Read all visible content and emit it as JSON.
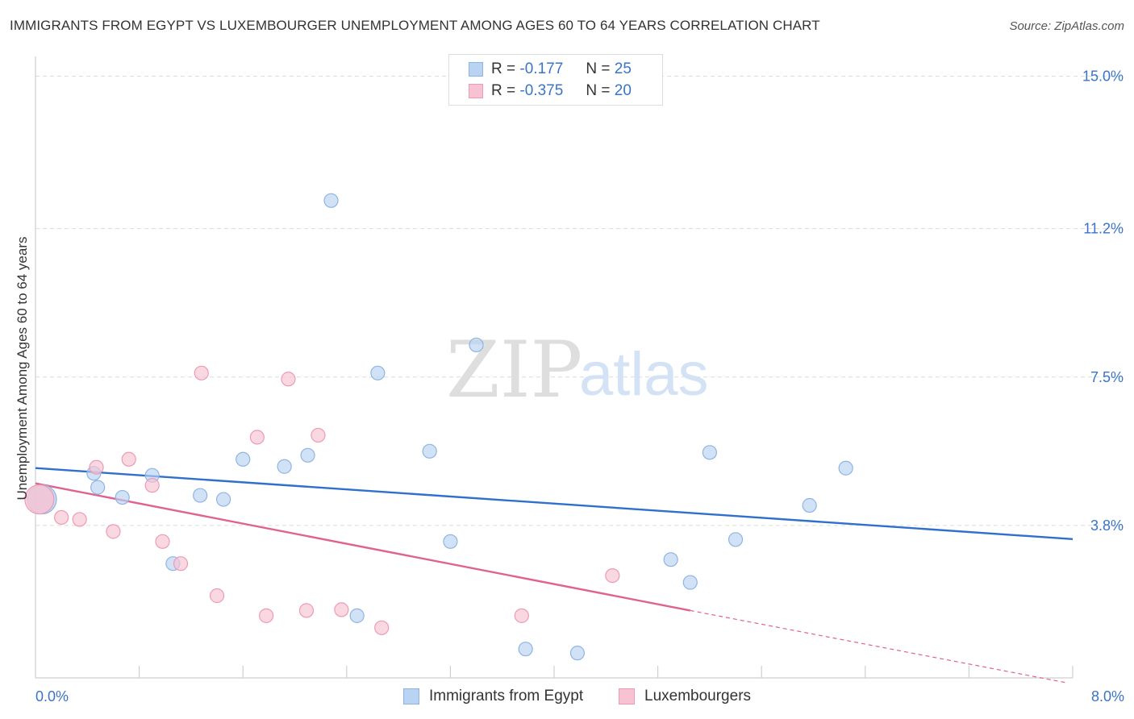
{
  "title": "IMMIGRANTS FROM EGYPT VS LUXEMBOURGER UNEMPLOYMENT AMONG AGES 60 TO 64 YEARS CORRELATION CHART",
  "source": "Source: ZipAtlas.com",
  "watermark": {
    "zip": "ZIP",
    "atlas": "atlas"
  },
  "legend": {
    "r_label": "R =",
    "n_label": "N =",
    "rows": [
      {
        "r": "-0.177",
        "n": "25"
      },
      {
        "r": "-0.375",
        "n": "20"
      }
    ]
  },
  "colors": {
    "blue_fill": "#b9d3f2",
    "blue_stroke": "#8fb4e3",
    "blue_line": "#2f6fce",
    "pink_fill": "#f7c3d2",
    "pink_stroke": "#ee9ab3",
    "pink_line": "#e0628f",
    "axis_text": "#3a74c8"
  },
  "chart_data": {
    "type": "scatter",
    "title": "IMMIGRANTS FROM EGYPT VS LUXEMBOURGER UNEMPLOYMENT AMONG AGES 60 TO 64 YEARS CORRELATION CHART",
    "xlabel": "",
    "ylabel": "Unemployment Among Ages 60 to 64 years",
    "xlim": [
      0,
      8
    ],
    "ylim": [
      0,
      15.3
    ],
    "x_tick_labels": [
      "0.0%",
      "8.0%"
    ],
    "y_ticks": [
      3.8,
      7.5,
      11.2,
      15.0
    ],
    "y_tick_labels": [
      "3.8%",
      "7.5%",
      "11.2%",
      "15.0%"
    ],
    "grid": true,
    "legend_position": "top-center",
    "series": [
      {
        "name": "Immigrants from Egypt",
        "r": -0.177,
        "n": 25,
        "trend": {
          "x0": 0.0,
          "y0": 5.23,
          "x1": 8.0,
          "y1": 3.46
        },
        "points": [
          {
            "x": 0.05,
            "y": 4.45,
            "big": true
          },
          {
            "x": 0.45,
            "y": 5.1
          },
          {
            "x": 0.48,
            "y": 4.75
          },
          {
            "x": 0.67,
            "y": 4.5
          },
          {
            "x": 0.9,
            "y": 5.05
          },
          {
            "x": 1.06,
            "y": 2.85
          },
          {
            "x": 1.27,
            "y": 4.55
          },
          {
            "x": 1.45,
            "y": 4.45
          },
          {
            "x": 1.6,
            "y": 5.45
          },
          {
            "x": 1.92,
            "y": 5.27
          },
          {
            "x": 2.1,
            "y": 5.55
          },
          {
            "x": 2.28,
            "y": 11.9
          },
          {
            "x": 2.48,
            "y": 1.55
          },
          {
            "x": 2.64,
            "y": 7.6
          },
          {
            "x": 3.04,
            "y": 5.65
          },
          {
            "x": 3.2,
            "y": 3.4
          },
          {
            "x": 3.4,
            "y": 8.3
          },
          {
            "x": 3.78,
            "y": 0.72
          },
          {
            "x": 4.18,
            "y": 0.62
          },
          {
            "x": 4.9,
            "y": 2.95
          },
          {
            "x": 5.05,
            "y": 2.38
          },
          {
            "x": 5.2,
            "y": 5.62
          },
          {
            "x": 5.4,
            "y": 3.45
          },
          {
            "x": 5.97,
            "y": 4.3
          },
          {
            "x": 6.25,
            "y": 5.23
          }
        ]
      },
      {
        "name": "Luxembourgers",
        "r": -0.375,
        "n": 20,
        "trend": {
          "x0": 0.0,
          "y0": 4.85,
          "x1": 5.05,
          "y1": 1.68
        },
        "trend_dashed": {
          "x0": 5.05,
          "y0": 1.68,
          "x1": 7.95,
          "y1": -0.12
        },
        "points": [
          {
            "x": 0.03,
            "y": 4.45,
            "big": true
          },
          {
            "x": 0.2,
            "y": 4.0
          },
          {
            "x": 0.34,
            "y": 3.95
          },
          {
            "x": 0.47,
            "y": 5.25
          },
          {
            "x": 0.6,
            "y": 3.65
          },
          {
            "x": 0.72,
            "y": 5.45
          },
          {
            "x": 0.9,
            "y": 4.8
          },
          {
            "x": 0.98,
            "y": 3.4
          },
          {
            "x": 1.12,
            "y": 2.85
          },
          {
            "x": 1.28,
            "y": 7.6
          },
          {
            "x": 1.4,
            "y": 2.05
          },
          {
            "x": 1.71,
            "y": 6.0
          },
          {
            "x": 1.78,
            "y": 1.55
          },
          {
            "x": 1.95,
            "y": 7.45
          },
          {
            "x": 2.09,
            "y": 1.68
          },
          {
            "x": 2.18,
            "y": 6.05
          },
          {
            "x": 2.36,
            "y": 1.7
          },
          {
            "x": 2.67,
            "y": 1.25
          },
          {
            "x": 3.75,
            "y": 1.55
          },
          {
            "x": 4.45,
            "y": 2.55
          }
        ]
      }
    ]
  }
}
